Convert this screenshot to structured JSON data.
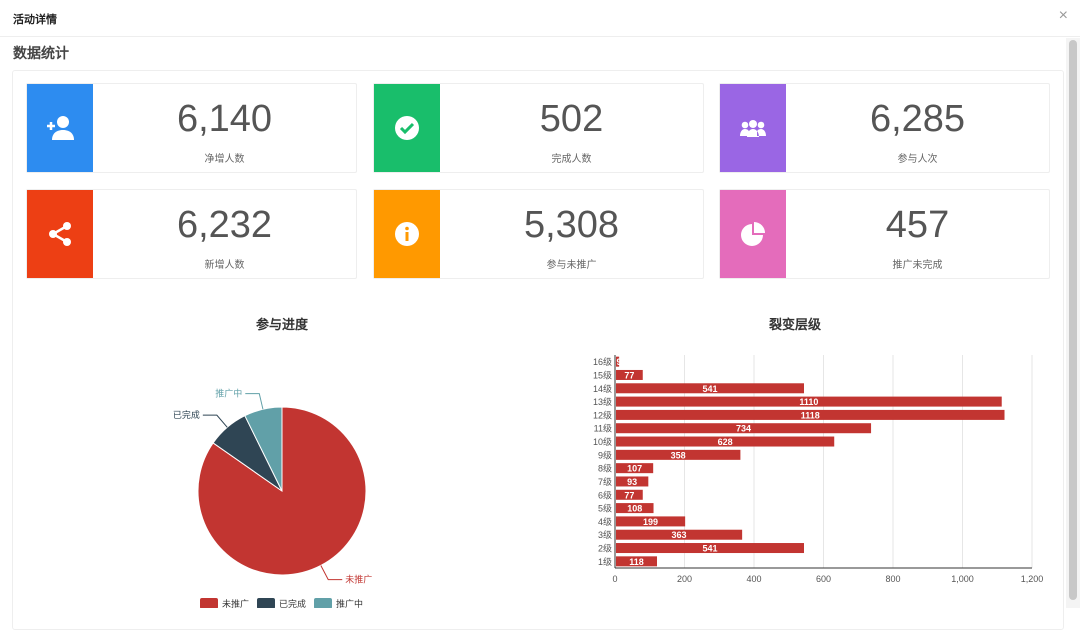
{
  "modal": {
    "title": "活动详情",
    "close": "×"
  },
  "section_title": "数据统计",
  "cards": [
    {
      "value": "6,140",
      "label": "净增人数",
      "color": "#2d8cf0",
      "icon": "user-plus-icon"
    },
    {
      "value": "502",
      "label": "完成人数",
      "color": "#19be6b",
      "icon": "check-circle-icon"
    },
    {
      "value": "6,285",
      "label": "参与人次",
      "color": "#9a66e4",
      "icon": "users-icon"
    },
    {
      "value": "6,232",
      "label": "新增人数",
      "color": "#ed3f14",
      "icon": "share-icon"
    },
    {
      "value": "5,308",
      "label": "参与未推广",
      "color": "#ff9900",
      "icon": "info-circle-icon"
    },
    {
      "value": "457",
      "label": "推广未完成",
      "color": "#e46cbb",
      "icon": "pie-chart-icon"
    }
  ],
  "chart_data": [
    {
      "type": "pie",
      "title": "参与进度",
      "slices": [
        {
          "name": "未推广",
          "value": 5308,
          "color": "#c23531"
        },
        {
          "name": "已完成",
          "value": 502,
          "color": "#2f4554"
        },
        {
          "name": "推广中",
          "value": 457,
          "color": "#61a0a8"
        }
      ],
      "legend": "bottom"
    },
    {
      "type": "bar",
      "orientation": "horizontal",
      "title": "裂变层级",
      "categories": [
        "1级",
        "2级",
        "3级",
        "4级",
        "5级",
        "6级",
        "7级",
        "8级",
        "9级",
        "10级",
        "11级",
        "12级",
        "13级",
        "14级",
        "15级",
        "16级"
      ],
      "values": [
        118,
        541,
        363,
        199,
        108,
        77,
        93,
        107,
        358,
        628,
        734,
        1118,
        1110,
        541,
        77,
        9
      ],
      "xlim": [
        0,
        1200
      ],
      "xticks": [
        "0",
        "200",
        "400",
        "600",
        "800",
        "1,000",
        "1,200"
      ],
      "xtick_values": [
        0,
        200,
        400,
        600,
        800,
        1000,
        1200
      ],
      "grid": true,
      "color": "#c23531"
    }
  ]
}
